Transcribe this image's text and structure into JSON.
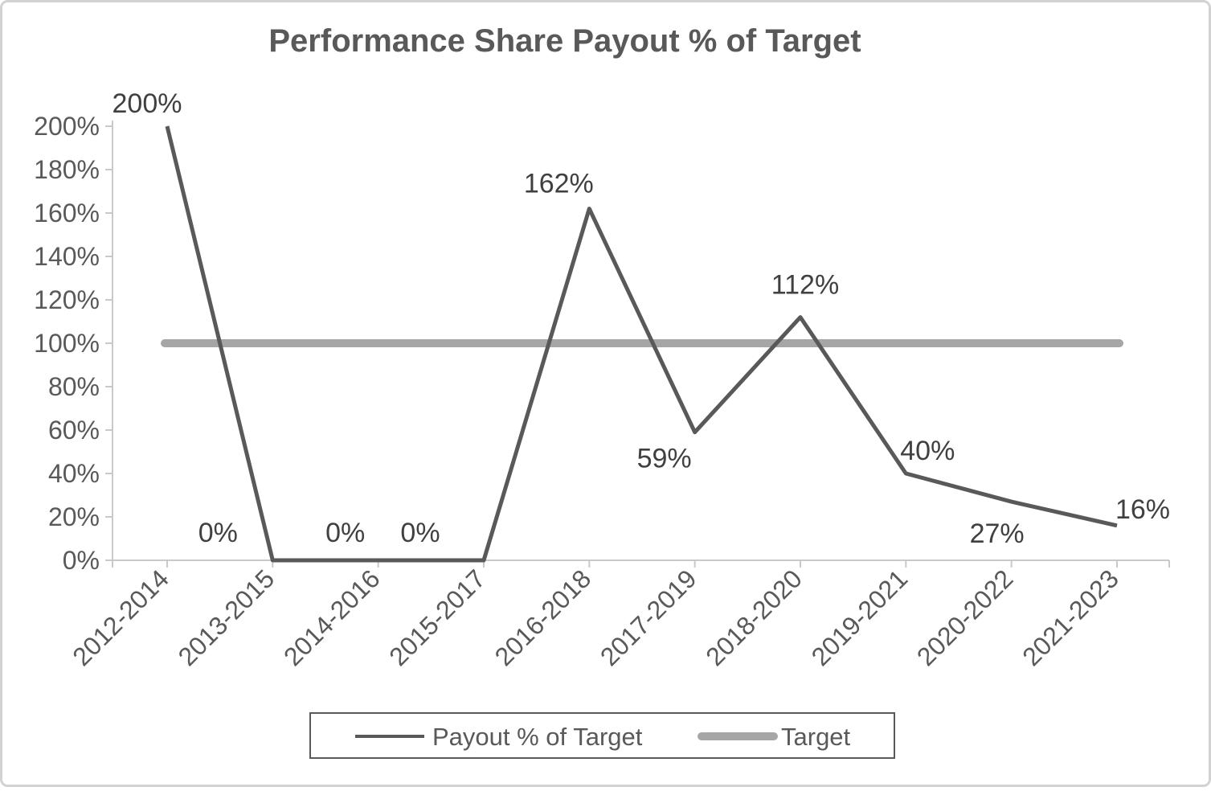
{
  "chart_data": {
    "type": "line",
    "title": "Performance Share Payout % of Target",
    "categories": [
      "2012-2014",
      "2013-2015",
      "2014-2016",
      "2015-2017",
      "2016-2018",
      "2017-2019",
      "2018-2020",
      "2019-2021",
      "2020-2022",
      "2021-2023"
    ],
    "series": [
      {
        "name": "Payout % of Target",
        "values": [
          200,
          0,
          0,
          0,
          162,
          59,
          112,
          40,
          27,
          16
        ],
        "color": "#595959",
        "line_width": 5
      },
      {
        "name": "Target",
        "values": [
          100,
          100,
          100,
          100,
          100,
          100,
          100,
          100,
          100,
          100
        ],
        "color": "#a6a6a6",
        "line_width": 10
      }
    ],
    "data_labels": [
      "200%",
      "0%",
      "0%",
      "0%",
      "162%",
      "59%",
      "112%",
      "40%",
      "27%",
      "16%"
    ],
    "y_ticks": [
      {
        "value": 0,
        "label": "0%"
      },
      {
        "value": 20,
        "label": "20%"
      },
      {
        "value": 40,
        "label": "40%"
      },
      {
        "value": 60,
        "label": "60%"
      },
      {
        "value": 80,
        "label": "80%"
      },
      {
        "value": 100,
        "label": "100%"
      },
      {
        "value": 120,
        "label": "120%"
      },
      {
        "value": 140,
        "label": "140%"
      },
      {
        "value": 160,
        "label": "160%"
      },
      {
        "value": 180,
        "label": "180%"
      },
      {
        "value": 200,
        "label": "200%"
      }
    ],
    "ylim": [
      0,
      200
    ],
    "grid": "off",
    "legend": {
      "position": "bottom",
      "items": [
        "Payout % of Target",
        "Target"
      ]
    },
    "colors": {
      "title_text": "#595959",
      "axis_text": "#595959",
      "data_label_text": "#404040",
      "axis_line": "#c9c9c9",
      "series_line": "#595959",
      "target_line": "#a6a6a6",
      "legend_border": "#595959",
      "canvas_border": "#d2d2d2",
      "background": "#ffffff"
    }
  }
}
